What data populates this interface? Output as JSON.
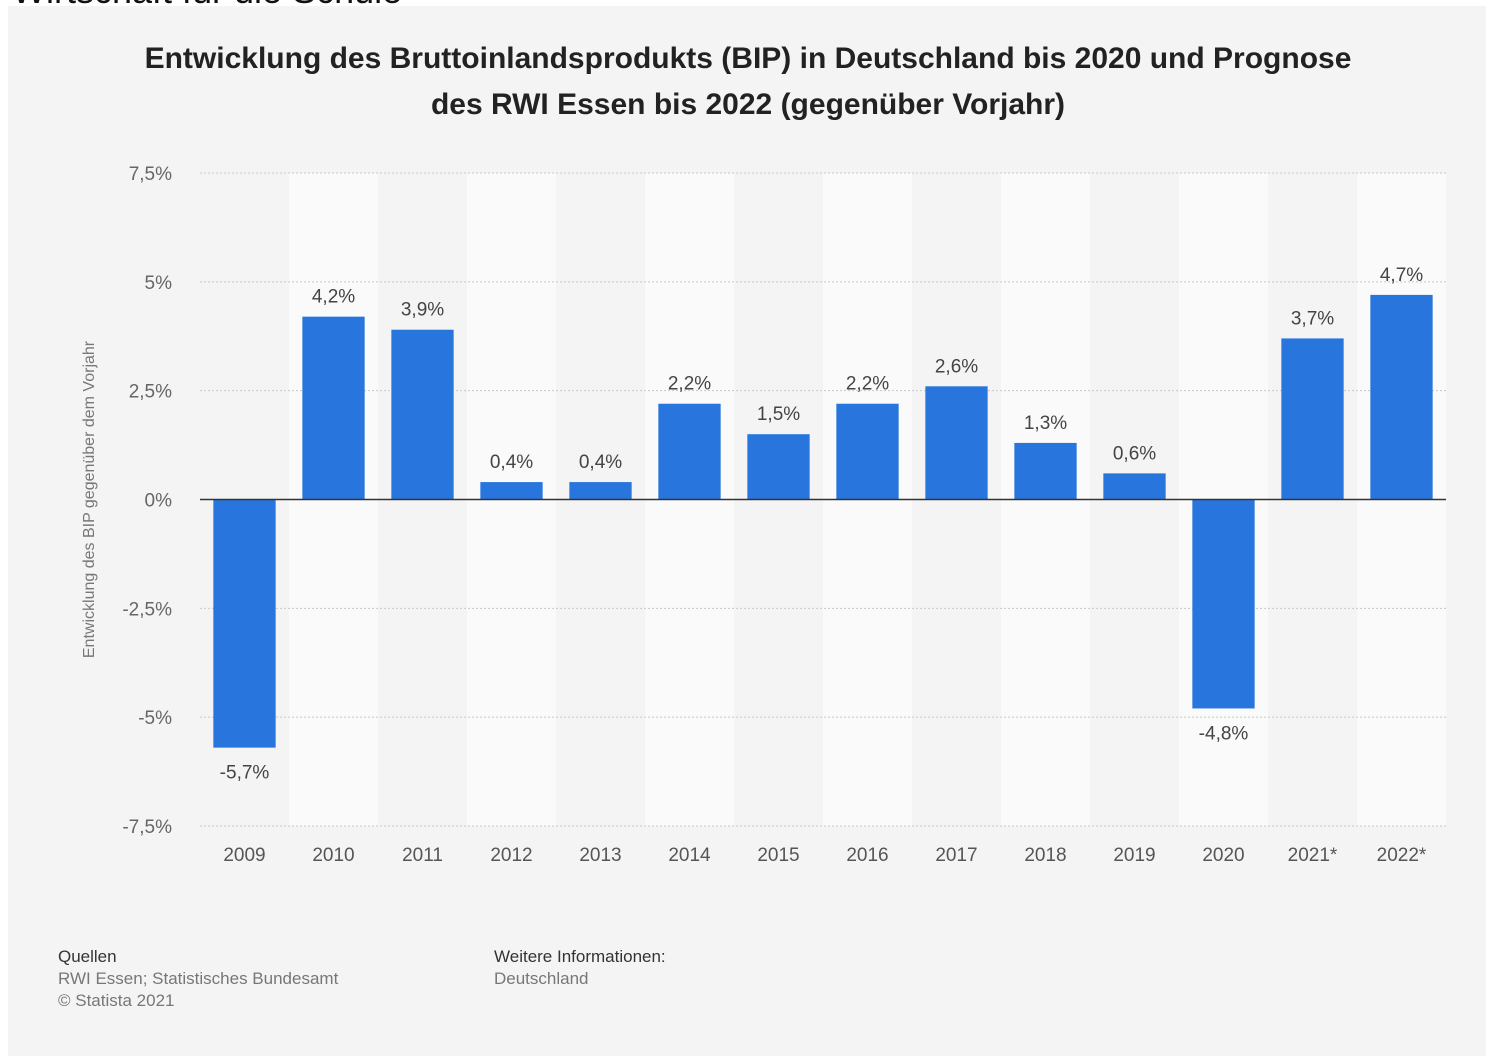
{
  "top_text": "Wirtschaft für die Schule",
  "chart_data": {
    "type": "bar",
    "title_line1": "Entwicklung des Bruttoinlandsprodukts (BIP) in Deutschland bis 2020 und Prognose",
    "title_line2": "des RWI Essen bis 2022 (gegenüber Vorjahr)",
    "ylabel": "Entwicklung des BIP gegenüber dem Vorjahr",
    "xlabel": "",
    "categories": [
      "2009",
      "2010",
      "2011",
      "2012",
      "2013",
      "2014",
      "2015",
      "2016",
      "2017",
      "2018",
      "2019",
      "2020",
      "2021*",
      "2022*"
    ],
    "values": [
      -5.7,
      4.2,
      3.9,
      0.4,
      0.4,
      2.2,
      1.5,
      2.2,
      2.6,
      1.3,
      0.6,
      -4.8,
      3.7,
      4.7
    ],
    "value_labels": [
      "-5,7%",
      "4,2%",
      "3,9%",
      "0,4%",
      "0,4%",
      "2,2%",
      "1,5%",
      "2,2%",
      "2,6%",
      "1,3%",
      "0,6%",
      "-4,8%",
      "3,7%",
      "4,7%"
    ],
    "yticks": [
      7.5,
      5,
      2.5,
      0,
      -2.5,
      -5,
      -7.5
    ],
    "ytick_labels": [
      "7,5%",
      "5%",
      "2,5%",
      "0%",
      "-2,5%",
      "-5%",
      "-7,5%"
    ],
    "ylim": [
      -7.5,
      7.5
    ],
    "grid": true,
    "bar_color": "#2876dd"
  },
  "footer": {
    "sources_heading": "Quellen",
    "sources_line1": "RWI Essen; Statistisches Bundesamt",
    "sources_line2": "© Statista 2021",
    "more_heading": "Weitere Informationen:",
    "more_line1": "Deutschland"
  }
}
